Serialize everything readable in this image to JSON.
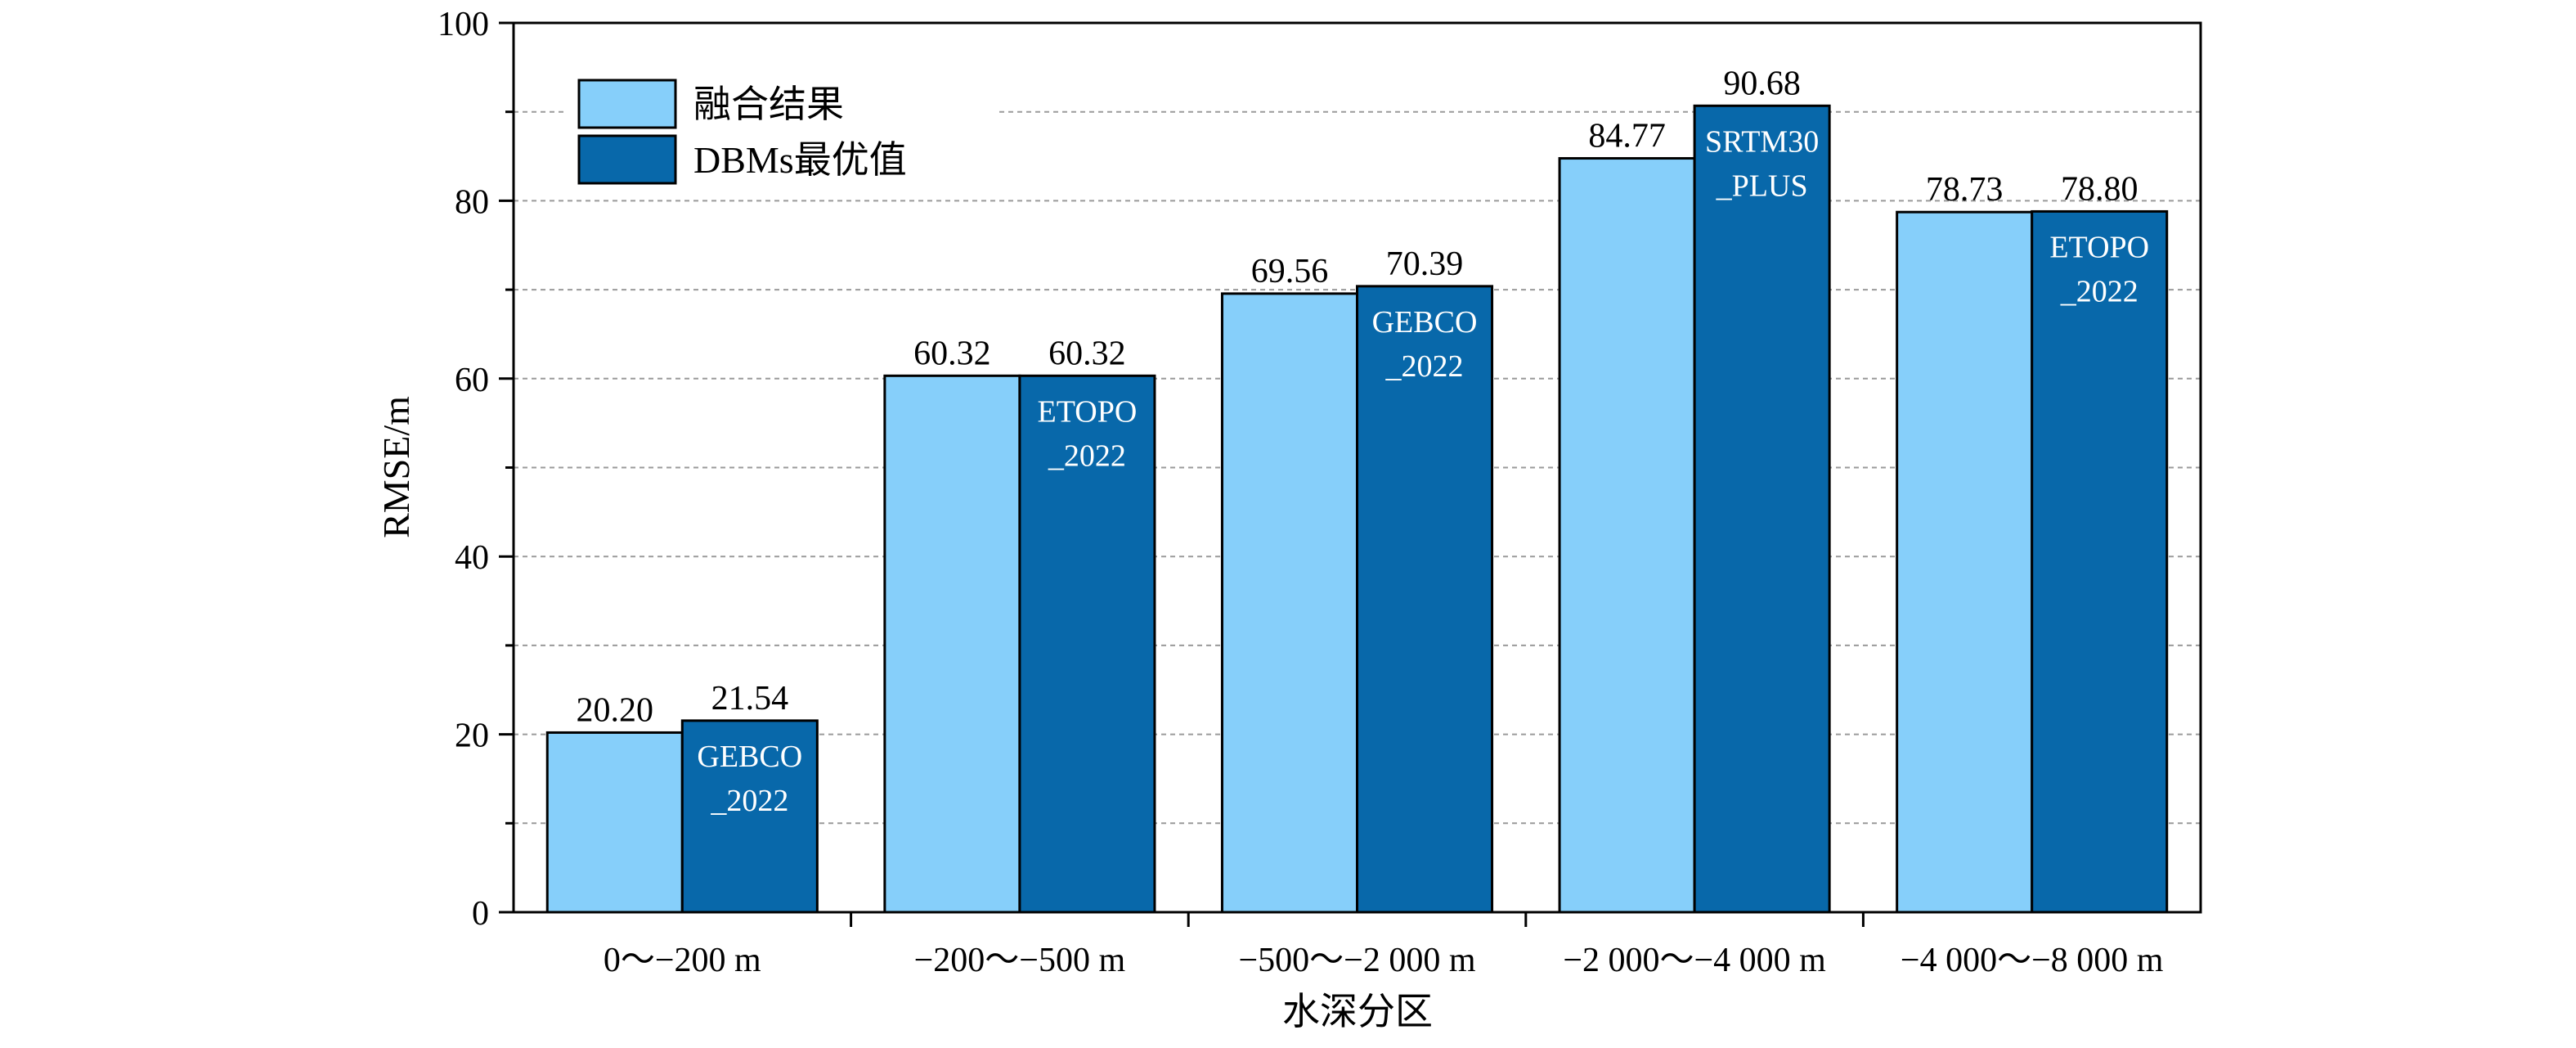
{
  "chart_data": {
    "type": "bar",
    "xlabel": "水深分区",
    "ylabel": "RMSE/m",
    "ylim": [
      0,
      100
    ],
    "yticks": [
      0,
      20,
      40,
      60,
      80,
      100
    ],
    "grid": "horizontal-dashed",
    "legend_position": "top-left",
    "categories": [
      "0～−200 m",
      "−200～−500 m",
      "−500～−2 000 m",
      "−2 000～−4 000 m",
      "−4 000～−8 000 m"
    ],
    "series": [
      {
        "name": "融合结果",
        "color": "#86cffa",
        "values": [
          20.2,
          60.32,
          69.56,
          84.77,
          78.73
        ],
        "labels": [
          "20.20",
          "60.32",
          "69.56",
          "84.77",
          "78.73"
        ]
      },
      {
        "name": "DBMs最优值",
        "color": "#0868aa",
        "values": [
          21.54,
          60.32,
          70.39,
          90.68,
          78.8
        ],
        "labels": [
          "21.54",
          "60.32",
          "70.39",
          "90.68",
          "78.80"
        ],
        "annotations": [
          [
            "GEBCO",
            "_2022"
          ],
          [
            "ETOPO",
            "_2022"
          ],
          [
            "GEBCO",
            "_2022"
          ],
          [
            "SRTM30",
            "_PLUS"
          ],
          [
            "ETOPO",
            "_2022"
          ]
        ]
      }
    ]
  }
}
